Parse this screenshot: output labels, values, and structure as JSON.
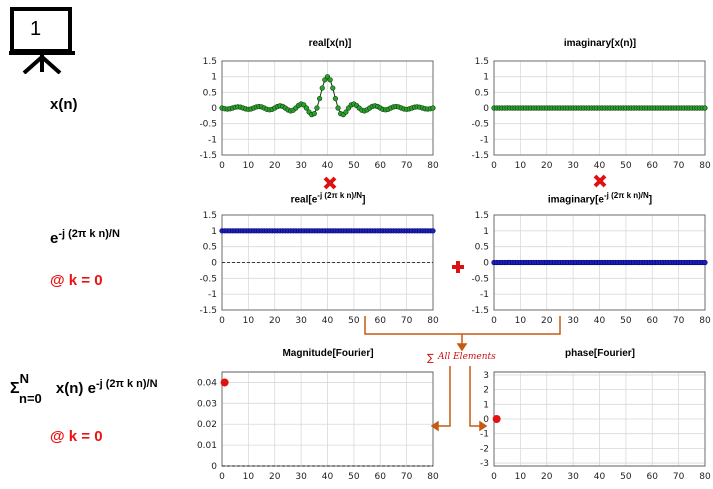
{
  "slide_number": "1",
  "labels": {
    "xn": "x(n)",
    "kernel_base": "e",
    "kernel_exp": "-j (2π k n)/N",
    "k0_a": "@ k = 0",
    "sum_sym": "Σ",
    "sum_top": "N",
    "sum_bot": "n=0",
    "sum_mid": " x(n) e",
    "sum_exp": "-j (2π k n)/N",
    "k0_b": "@ k = 0",
    "all_elements": "All Elements"
  },
  "colors": {
    "accent_red": "#e11111",
    "signal_green": "#1a8f1a",
    "kernel_blue": "#00008b",
    "arrow_orange": "#c55a11"
  },
  "chart_data": [
    {
      "type": "line",
      "title": "real[x(n)]",
      "x_ticks": [
        "0",
        "10",
        "20",
        "30",
        "40",
        "50",
        "60",
        "70",
        "80"
      ],
      "y_ticks": [
        "1.5",
        "1",
        "0.5",
        "0",
        "-0.5",
        "-1",
        "-1.5"
      ],
      "xlim": [
        0,
        80
      ],
      "ylim": [
        -1.5,
        1.5
      ],
      "series": [
        {
          "signal": "sinc",
          "center": 40,
          "width": 4,
          "color": "green",
          "marker": "circle"
        }
      ],
      "grid": true
    },
    {
      "type": "line",
      "title": "imaginary[x(n)]",
      "x_ticks": [
        "0",
        "10",
        "20",
        "30",
        "40",
        "50",
        "60",
        "70",
        "80"
      ],
      "y_ticks": [
        "1.5",
        "1",
        "0.5",
        "0",
        "-0.5",
        "-1",
        "-1.5"
      ],
      "xlim": [
        0,
        80
      ],
      "ylim": [
        -1.5,
        1.5
      ],
      "series": [
        {
          "signal": "constant",
          "value": 0,
          "color": "green",
          "marker": "circle"
        }
      ],
      "grid": true
    },
    {
      "type": "line",
      "title_base": "real[e",
      "title_exp": "-j (2π k n)/N",
      "title_end": "]",
      "x_ticks": [
        "0",
        "10",
        "20",
        "30",
        "40",
        "50",
        "60",
        "70",
        "80"
      ],
      "y_ticks": [
        "1.5",
        "1",
        "0.5",
        "0",
        "-0.5",
        "-1",
        "-1.5"
      ],
      "xlim": [
        0,
        80
      ],
      "ylim": [
        -1.5,
        1.5
      ],
      "series": [
        {
          "signal": "constant",
          "value": 1,
          "color": "blue",
          "marker": "circle"
        }
      ],
      "grid": true
    },
    {
      "type": "line",
      "title_base": "imaginary[e",
      "title_exp": "-j (2π k n)/N",
      "title_end": "]",
      "x_ticks": [
        "0",
        "10",
        "20",
        "30",
        "40",
        "50",
        "60",
        "70",
        "80"
      ],
      "y_ticks": [
        "1.5",
        "1",
        "0.5",
        "0",
        "-0.5",
        "-1",
        "-1.5"
      ],
      "xlim": [
        0,
        80
      ],
      "ylim": [
        -1.5,
        1.5
      ],
      "series": [
        {
          "signal": "constant",
          "value": 0,
          "color": "blue",
          "marker": "circle"
        }
      ],
      "grid": true
    },
    {
      "type": "scatter",
      "title": "Magnitude[Fourier]",
      "x_ticks": [
        "0",
        "10",
        "20",
        "30",
        "40",
        "50",
        "60",
        "70",
        "80"
      ],
      "y_ticks": [
        "0.04",
        "0.03",
        "0.02",
        "0.01",
        "0"
      ],
      "xlim": [
        0,
        80
      ],
      "ylim": [
        0,
        0.045
      ],
      "points": [
        {
          "x": 1,
          "y": 0.04
        }
      ],
      "grid": true
    },
    {
      "type": "scatter",
      "title": "phase[Fourier]",
      "x_ticks": [
        "0",
        "10",
        "20",
        "30",
        "40",
        "50",
        "60",
        "70",
        "80"
      ],
      "y_ticks": [
        "3",
        "2",
        "1",
        "0",
        "-1",
        "-2",
        "-3"
      ],
      "xlim": [
        0,
        80
      ],
      "ylim": [
        -3.2,
        3.2
      ],
      "points": [
        {
          "x": 1,
          "y": 0
        }
      ],
      "grid": true
    }
  ]
}
